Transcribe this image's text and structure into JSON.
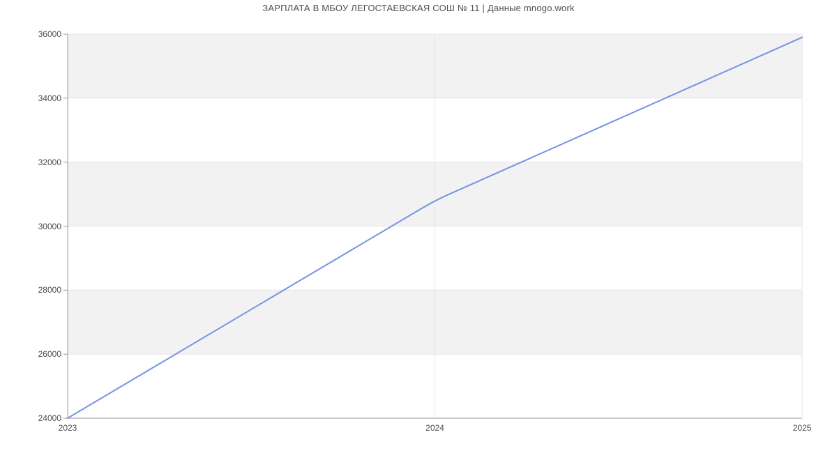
{
  "chart_data": {
    "type": "line",
    "title": "ЗАРПЛАТА В МБОУ ЛЕГОСТАЕВСКАЯ СОШ № 11 | Данные mnogo.work",
    "x": [
      2023,
      2024,
      2025
    ],
    "series": [
      {
        "values": [
          24000,
          30800,
          35900
        ]
      }
    ],
    "xticks": [
      2023,
      2024,
      2025
    ],
    "yticks": [
      24000,
      26000,
      28000,
      30000,
      32000,
      34000,
      36000
    ],
    "xlim": [
      2023,
      2025
    ],
    "ylim": [
      24000,
      36000
    ],
    "grid": true,
    "legend": "none",
    "colors": {
      "line": "#7593e2",
      "band": "#f2f2f2",
      "gridline": "#e6e6e6",
      "axis": "#9a9a9a",
      "tick_label": "#4d4d4d",
      "title": "#4f4f4f",
      "background": "#ffffff"
    }
  }
}
